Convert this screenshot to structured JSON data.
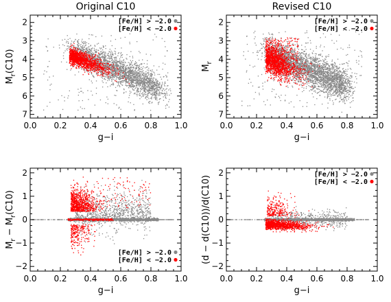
{
  "colors": {
    "metal_rich": "#888888",
    "metal_poor": "#ff0000",
    "axis": "#000000"
  },
  "chart_data": [
    {
      "type": "scatter",
      "title": "Original C10",
      "xlabel": "g−i",
      "ylabel": "M",
      "ylabel_sub": "r",
      "ylabel_suffix": "(C10)",
      "xlim": [
        0.0,
        1.0
      ],
      "ylim": [
        7.2,
        1.6
      ],
      "y_inverted": true,
      "xticks": [
        "0.0",
        "0.2",
        "0.4",
        "0.6",
        "0.8",
        "1.0"
      ],
      "yticks": [
        "2",
        "3",
        "4",
        "5",
        "6",
        "7"
      ],
      "legend_position": "top-right",
      "series": [
        {
          "name": "[Fe/H] > −2.0",
          "color": "#888888",
          "region": "gray band from (0.3,4.0) to (0.8,6.0)"
        },
        {
          "name": "[Fe/H] < −2.0",
          "color": "#ff0000",
          "region": "red band from (0.25,3.8) to (0.55,4.8)"
        }
      ]
    },
    {
      "type": "scatter",
      "title": "Revised C10",
      "xlabel": "g−i",
      "ylabel": "M",
      "ylabel_sub": "r",
      "ylabel_suffix": "",
      "xlim": [
        0.0,
        1.0
      ],
      "ylim": [
        7.2,
        1.6
      ],
      "y_inverted": true,
      "xticks": [
        "0.0",
        "0.2",
        "0.4",
        "0.6",
        "0.8",
        "1.0"
      ],
      "yticks": [
        "2",
        "3",
        "4",
        "5",
        "6",
        "7"
      ],
      "legend_position": "top-right",
      "series": [
        {
          "name": "[Fe/H] > −2.0",
          "color": "#888888",
          "region": "gray band from (0.25,3.3) to (0.8,5.8)"
        },
        {
          "name": "[Fe/H] < −2.0",
          "color": "#ff0000",
          "region": "red band from (0.25,3.0) to (0.5,5.0)"
        }
      ]
    },
    {
      "type": "scatter",
      "title": "",
      "xlabel": "g−i",
      "ylabel": "M",
      "ylabel_sub": "r",
      "ylabel_suffix": " − M",
      "ylabel_sub2": "r",
      "ylabel_suffix2": "(C10)",
      "xlim": [
        0.0,
        1.0
      ],
      "ylim": [
        -2.2,
        2.2
      ],
      "y_inverted": false,
      "xticks": [
        "0.0",
        "0.2",
        "0.4",
        "0.6",
        "0.8",
        "1.0"
      ],
      "yticks": [
        "−2",
        "−1",
        "0",
        "1",
        "2"
      ],
      "legend_position": "bottom-right",
      "series": [
        {
          "name": "[Fe/H] > −2.0",
          "color": "#888888"
        },
        {
          "name": "[Fe/H] < −2.0",
          "color": "#ff0000"
        }
      ]
    },
    {
      "type": "scatter",
      "title": "",
      "xlabel": "g−i",
      "ylabel": "(d − d(C10))/d(C10)",
      "xlim": [
        0.0,
        1.0
      ],
      "ylim": [
        -2.2,
        2.2
      ],
      "y_inverted": false,
      "xticks": [
        "0.0",
        "0.2",
        "0.4",
        "0.6",
        "0.8",
        "1.0"
      ],
      "yticks": [
        "−2",
        "−1",
        "0",
        "1",
        "2"
      ],
      "legend_position": "top-right",
      "series": [
        {
          "name": "[Fe/H] > −2.0",
          "color": "#888888"
        },
        {
          "name": "[Fe/H] < −2.0",
          "color": "#ff0000"
        }
      ]
    }
  ]
}
